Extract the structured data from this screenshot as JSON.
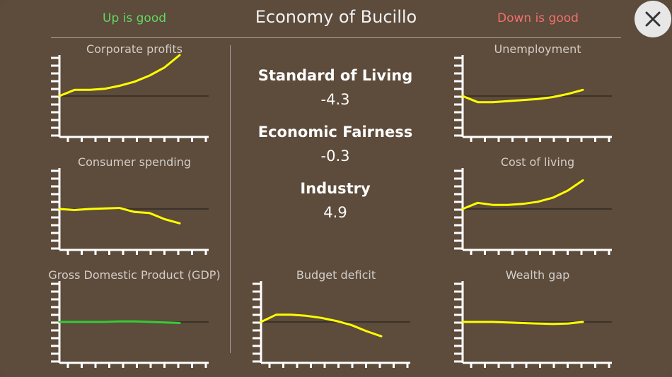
{
  "header": {
    "title": "Economy of Bucillo",
    "up_label": "Up is good",
    "down_label": "Down is good"
  },
  "colors": {
    "background": "#5d4b3b",
    "up_good": "#62d862",
    "down_good": "#f07070",
    "line_default": "#ffff00",
    "line_good": "#33cc33",
    "axis": "#ffffff",
    "baseline": "#1a1a1a"
  },
  "close_button": {
    "icon": "close-icon"
  },
  "metrics": [
    {
      "label": "Standard of Living",
      "value": "-4.3"
    },
    {
      "label": "Economic Fairness",
      "value": "-0.3"
    },
    {
      "label": "Industry",
      "value": "4.9"
    }
  ],
  "chart_data": [
    {
      "type": "line",
      "title": "Corporate profits",
      "color": "#ffff00",
      "x": [
        0,
        1,
        2,
        3,
        4,
        5,
        6,
        7,
        8
      ],
      "values": [
        0,
        0.6,
        0.6,
        0.7,
        1.0,
        1.4,
        2.0,
        2.8,
        4.0
      ],
      "ylim": [
        -4,
        4
      ]
    },
    {
      "type": "line",
      "title": "Consumer spending",
      "color": "#ffff00",
      "x": [
        0,
        1,
        2,
        3,
        4,
        5,
        6,
        7,
        8
      ],
      "values": [
        0,
        -0.1,
        0,
        0.05,
        0.1,
        -0.3,
        -0.4,
        -1.0,
        -1.4
      ],
      "ylim": [
        -4,
        4
      ]
    },
    {
      "type": "line",
      "title": "Gross Domestic Product (GDP)",
      "color": "#33cc33",
      "x": [
        0,
        1,
        2,
        3,
        4,
        5,
        6,
        7,
        8
      ],
      "values": [
        0,
        0,
        0,
        0,
        0.05,
        0.05,
        0,
        -0.05,
        -0.1
      ],
      "ylim": [
        -4,
        4
      ]
    },
    {
      "type": "line",
      "title": "Budget deficit",
      "color": "#ffff00",
      "x": [
        0,
        1,
        2,
        3,
        4,
        5,
        6,
        7,
        8
      ],
      "values": [
        0,
        0.7,
        0.7,
        0.6,
        0.4,
        0.1,
        -0.3,
        -0.9,
        -1.4
      ],
      "ylim": [
        -4,
        4
      ]
    },
    {
      "type": "line",
      "title": "Unemployment",
      "color": "#ffff00",
      "x": [
        0,
        1,
        2,
        3,
        4,
        5,
        6,
        7,
        8
      ],
      "values": [
        0,
        -0.6,
        -0.6,
        -0.5,
        -0.4,
        -0.3,
        -0.1,
        0.2,
        0.6
      ],
      "ylim": [
        -4,
        4
      ]
    },
    {
      "type": "line",
      "title": "Cost of living",
      "color": "#ffff00",
      "x": [
        0,
        1,
        2,
        3,
        4,
        5,
        6,
        7,
        8
      ],
      "values": [
        0,
        0.6,
        0.4,
        0.4,
        0.5,
        0.7,
        1.1,
        1.8,
        2.8
      ],
      "ylim": [
        -4,
        4
      ]
    },
    {
      "type": "line",
      "title": "Wealth gap",
      "color": "#ffff00",
      "x": [
        0,
        1,
        2,
        3,
        4,
        5,
        6,
        7,
        8
      ],
      "values": [
        0,
        0,
        0,
        -0.05,
        -0.1,
        -0.15,
        -0.2,
        -0.15,
        0
      ],
      "ylim": [
        -4,
        4
      ]
    }
  ]
}
